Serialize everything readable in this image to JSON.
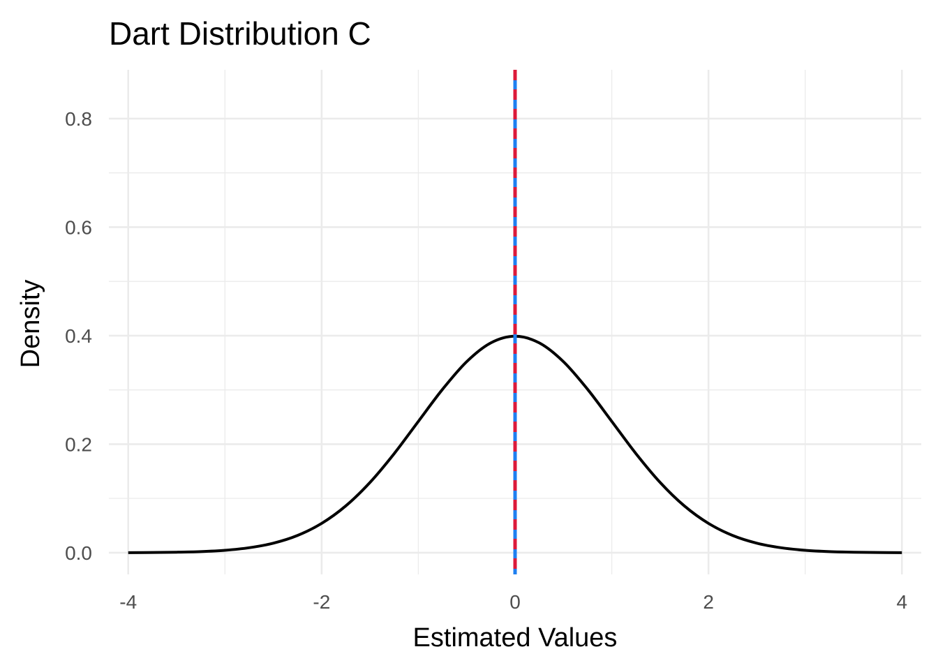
{
  "chart_data": {
    "type": "line",
    "title": "Dart Distribution C",
    "xlabel": "Estimated Values",
    "ylabel": "Density",
    "xlim": [
      -4.2,
      4.2
    ],
    "ylim": [
      -0.04,
      0.89
    ],
    "x_ticks": [
      -4,
      -2,
      0,
      2,
      4
    ],
    "x_tick_labels": [
      "-4",
      "-2",
      "0",
      "2",
      "4"
    ],
    "x_minor_ticks": [
      -3,
      -1,
      1,
      3
    ],
    "y_ticks": [
      0.0,
      0.2,
      0.4,
      0.6,
      0.8
    ],
    "y_tick_labels": [
      "0.0",
      "0.2",
      "0.4",
      "0.6",
      "0.8"
    ],
    "y_minor_ticks": [
      0.1,
      0.3,
      0.5,
      0.7
    ],
    "grid": true,
    "series": [
      {
        "color": "#000000",
        "x": [
          -4,
          -3.75,
          -3.5,
          -3.25,
          -3,
          -2.75,
          -2.5,
          -2.25,
          -2,
          -1.75,
          -1.5,
          -1.25,
          -1,
          -0.75,
          -0.5,
          -0.25,
          0,
          0.25,
          0.5,
          0.75,
          1,
          1.25,
          1.5,
          1.75,
          2,
          2.25,
          2.5,
          2.75,
          3,
          3.25,
          3.5,
          3.75,
          4
        ],
        "y": [
          0.0001,
          0.0004,
          0.0009,
          0.002,
          0.0044,
          0.0091,
          0.0175,
          0.0317,
          0.054,
          0.0863,
          0.1295,
          0.1826,
          0.242,
          0.3011,
          0.3521,
          0.3867,
          0.3989,
          0.3867,
          0.3521,
          0.3011,
          0.242,
          0.1826,
          0.1295,
          0.0863,
          0.054,
          0.0317,
          0.0175,
          0.0091,
          0.0044,
          0.002,
          0.0009,
          0.0004,
          0.0001
        ]
      }
    ],
    "vlines": [
      {
        "x": 0,
        "color": "#1e7ff0",
        "style": "solid"
      },
      {
        "x": 0,
        "color": "#dc1a3a",
        "style": "dashed"
      }
    ]
  }
}
